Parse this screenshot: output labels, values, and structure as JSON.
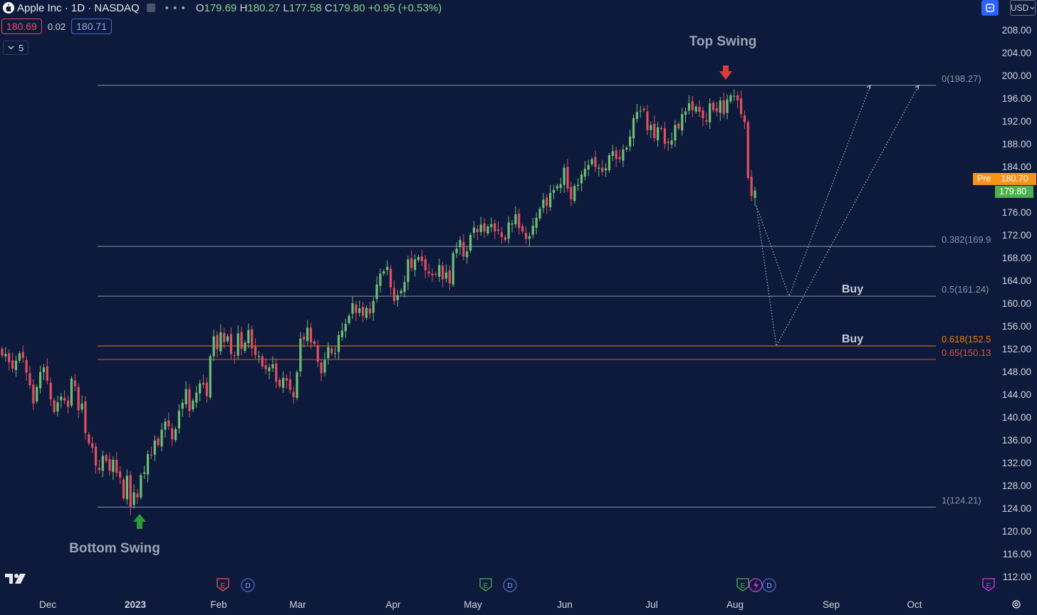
{
  "header": {
    "symbol_title": "Apple Inc · 1D · NASDAQ",
    "dots": "• • •",
    "ohlc": [
      {
        "label": "O",
        "value": "179.69"
      },
      {
        "label": "H",
        "value": "180.27"
      },
      {
        "label": "L",
        "value": "177.58"
      },
      {
        "label": "C",
        "value": "179.80"
      },
      {
        "label": "",
        "value": "+0.95 (+0.53%)"
      }
    ],
    "sell_price": "180.69",
    "spread": "0.02",
    "buy_price": "180.71",
    "indicator_count": "5",
    "currency": "USD",
    "pre_label": "Pre",
    "pre_price": "180.70",
    "last_price": "179.80"
  },
  "chart_data": {
    "type": "candlestick",
    "price_axis": {
      "min": 112,
      "max": 208,
      "ticks": [
        208,
        204,
        200,
        196,
        192,
        188,
        184,
        180,
        176,
        172,
        168,
        164,
        160,
        156,
        152,
        148,
        144,
        140,
        136,
        132,
        128,
        124,
        120,
        116,
        112
      ]
    },
    "time_axis": {
      "labels": [
        "Dec",
        "2023",
        "Feb",
        "Mar",
        "Apr",
        "May",
        "Jun",
        "Jul",
        "Aug",
        "Sep",
        "Oct"
      ]
    },
    "bottom_swing": {
      "label": "Bottom Swing",
      "price": 124.21
    },
    "top_swing": {
      "label": "Top Swing",
      "price": 198.27
    },
    "fib_levels": [
      {
        "ratio": "0",
        "label": "0(198.27)",
        "price": 198.27,
        "color": "#8a93a8"
      },
      {
        "ratio": "0.382",
        "label": "0.382(169.9",
        "price": 169.98,
        "color": "#8a93a8"
      },
      {
        "ratio": "0.5",
        "label": "0.5(161.24)",
        "price": 161.24,
        "color": "#8a93a8"
      },
      {
        "ratio": "0.618",
        "label": "0.618(152.5",
        "price": 152.5,
        "color": "#f57c00"
      },
      {
        "ratio": "0.65",
        "label": "0.65(150.13",
        "price": 150.13,
        "color": "#e0503a"
      },
      {
        "ratio": "1",
        "label": "1(124.21)",
        "price": 124.21,
        "color": "#8a93a8"
      }
    ],
    "buy_labels": [
      "Buy",
      "Buy"
    ],
    "projection_paths": [
      {
        "points": [
          [
            177.1,
            "Aug"
          ],
          [
            161.24,
            "Aug"
          ],
          [
            198.27,
            "Sep"
          ]
        ]
      },
      {
        "points": [
          [
            177.1,
            "Aug"
          ],
          [
            152.5,
            "Aug"
          ],
          [
            198.27,
            "Oct"
          ]
        ]
      }
    ],
    "events": [
      {
        "type": "E",
        "color": "#f0505f",
        "at": "2023"
      },
      {
        "type": "D",
        "color": "#4b63d6",
        "at": "2023"
      },
      {
        "type": "E",
        "color": "#4caf50",
        "at": "May"
      },
      {
        "type": "D",
        "color": "#4b63d6",
        "at": "May"
      },
      {
        "type": "E",
        "color": "#4caf50",
        "at": "Aug"
      },
      {
        "type": "S",
        "color": "#d03ad6",
        "at": "Aug"
      },
      {
        "type": "D",
        "color": "#4b63d6",
        "at": "Aug"
      },
      {
        "type": "E",
        "color": "#d03ad6",
        "at": "edge"
      }
    ],
    "closes": [
      150.8,
      151.1,
      149.6,
      148.5,
      149.9,
      151.2,
      150.4,
      147.8,
      145.6,
      142.4,
      145.3,
      147.9,
      148.7,
      146.4,
      143.1,
      140.9,
      142.6,
      143.6,
      142.9,
      141.8,
      146.8,
      145.4,
      141.2,
      142.4,
      137.2,
      135.4,
      134.6,
      131.5,
      130.7,
      133.2,
      132.3,
      130.6,
      132.5,
      130.2,
      129.4,
      125.7,
      129.7,
      124.2,
      126.8,
      125.9,
      129.8,
      130.3,
      133.5,
      133.3,
      135.9,
      135.1,
      137.8,
      139.2,
      138.4,
      136.1,
      137.9,
      141.1,
      142.5,
      144.9,
      141.1,
      142.9,
      144.3,
      145.9,
      145.7,
      143.7,
      150.7,
      154.2,
      151.9,
      154.9,
      153.2,
      154.2,
      151.1,
      150.8,
      154.7,
      152.0,
      153.1,
      155.3,
      152.1,
      150.9,
      150.7,
      148.9,
      148.4,
      148.7,
      149.3,
      146.2,
      145.4,
      146.9,
      146.4,
      144.8,
      143.5,
      147.9,
      153.8,
      153.6,
      155.7,
      153.1,
      152.8,
      149.7,
      147.7,
      150.0,
      152.3,
      151.2,
      151.2,
      154.4,
      155.2,
      156.4,
      157.8,
      160.0,
      158.3,
      159.1,
      157.8,
      159.2,
      158.2,
      160.4,
      163.3,
      165.2,
      165.6,
      166.4,
      162.8,
      160.4,
      161.4,
      162.2,
      163.7,
      167.7,
      166.2,
      167.7,
      168.1,
      167.4,
      165.8,
      165.2,
      164.9,
      165.0,
      166.7,
      164.2,
      165.4,
      163.5,
      168.8,
      169.6,
      171.1,
      168.2,
      169.1,
      172.0,
      173.3,
      172.5,
      173.8,
      172.6,
      173.5,
      173.9,
      172.6,
      172.7,
      171.6,
      171.1,
      174.2,
      174.0,
      175.6,
      173.2,
      172.6,
      171.3,
      171.8,
      173.6,
      175.0,
      176.6,
      178.2,
      177.1,
      179.4,
      179.9,
      180.6,
      180.9,
      183.8,
      180.1,
      178.2,
      180.6,
      180.8,
      182.6,
      183.6,
      184.3,
      185.3,
      183.9,
      183.8,
      183.1,
      183.7,
      186.0,
      186.7,
      185.3,
      185.3,
      187.0,
      187.3,
      189.3,
      192.5,
      193.6,
      193.8,
      193.9,
      190.4,
      191.3,
      189.0,
      190.9,
      190.6,
      188.0,
      188.1,
      188.6,
      191.3,
      190.7,
      193.2,
      193.7,
      195.1,
      193.9,
      194.5,
      193.6,
      192.5,
      191.9,
      195.1,
      193.9,
      193.7,
      195.6,
      193.2,
      195.8,
      196.5,
      196.4,
      195.6,
      193.2,
      191.8,
      181.99,
      178.85,
      179.8
    ]
  }
}
